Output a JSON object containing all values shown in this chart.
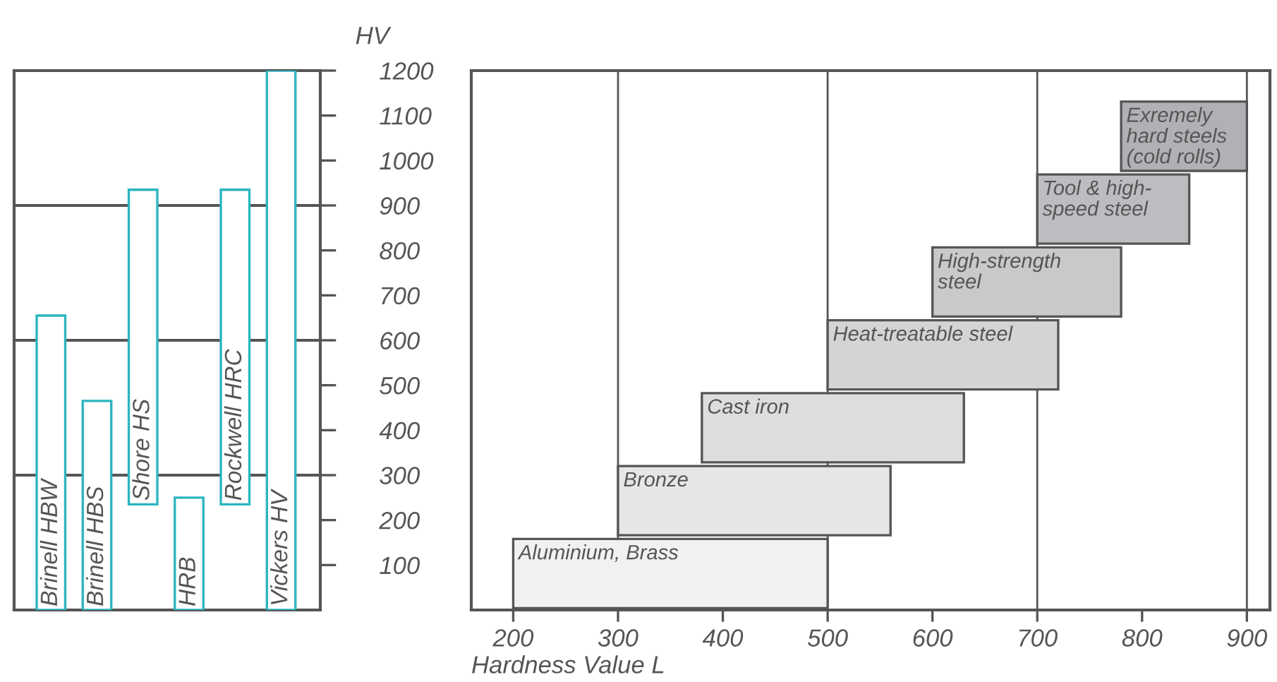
{
  "chart_data": [
    {
      "type": "bar",
      "categories": [
        "Brinell HBW",
        "Brinell HBS",
        "Shore HS",
        "HRB",
        "Rockwell HRC",
        "Vickers HV"
      ],
      "base": [
        0,
        0,
        235,
        0,
        235,
        0
      ],
      "values": [
        655,
        465,
        700,
        250,
        700,
        1200
      ],
      "color": "#2bb5c0",
      "ylabel": "HV",
      "ylim": [
        0,
        1200
      ],
      "yticks": [
        100,
        200,
        300,
        400,
        500,
        600,
        700,
        800,
        900,
        1000,
        1100,
        1200
      ],
      "tick_labels": "y",
      "ref_lines": [
        {
          "axis": "y",
          "value": 300
        },
        {
          "axis": "y",
          "value": 600
        },
        {
          "axis": "y",
          "value": 900
        }
      ]
    },
    {
      "type": "bar",
      "orientation": "horizontal",
      "categories": [
        "Exremely\nhard steels\n(cold rolls)",
        "Tool & high-\nspeed steel",
        "High-strength\nsteel",
        "Heat-treatable steel",
        "Cast iron",
        "Bronze",
        "Aluminium, Brass"
      ],
      "base": [
        780,
        700,
        600,
        500,
        380,
        300,
        200
      ],
      "values": [
        120,
        145,
        180,
        220,
        250,
        260,
        300
      ],
      "colors": [
        "#b0b1b4",
        "#bcbdc0",
        "#c8c9cb",
        "#d3d4d6",
        "#dcdddf",
        "#e5e6e8",
        "#f0f1f3"
      ],
      "xlabel": "Hardness Value L",
      "xlim": [
        160,
        922
      ],
      "xticks": [
        200,
        300,
        400,
        500,
        600,
        700,
        800,
        900
      ],
      "tick_labels": "x",
      "ref_lines": [
        {
          "axis": "x",
          "value": 300
        },
        {
          "axis": "x",
          "value": 500
        },
        {
          "axis": "x",
          "value": 700
        },
        {
          "axis": "x",
          "value": 900
        }
      ]
    }
  ]
}
